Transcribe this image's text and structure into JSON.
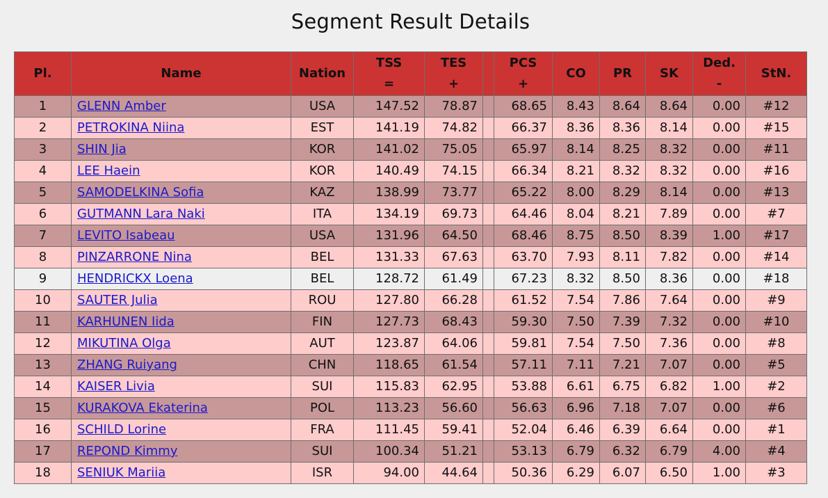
{
  "title": "Segment Result Details",
  "columns": {
    "pl": "Pl.",
    "name": "Name",
    "nation": "Nation",
    "tss": "TSS",
    "tss_sym": "=",
    "tes": "TES",
    "tes_sym": "+",
    "pcs": "PCS",
    "pcs_sym": "+",
    "co": "CO",
    "pr": "PR",
    "sk": "SK",
    "ded": "Ded.",
    "ded_sym": "-",
    "stn": "StN."
  },
  "rows": [
    {
      "pl": "1",
      "name": "GLENN Amber",
      "nation": "USA",
      "tss": "147.52",
      "tes": "78.87",
      "pcs": "68.65",
      "co": "8.43",
      "pr": "8.64",
      "sk": "8.64",
      "ded": "0.00",
      "stn": "#12"
    },
    {
      "pl": "2",
      "name": "PETROKINA Niina",
      "nation": "EST",
      "tss": "141.19",
      "tes": "74.82",
      "pcs": "66.37",
      "co": "8.36",
      "pr": "8.36",
      "sk": "8.14",
      "ded": "0.00",
      "stn": "#15"
    },
    {
      "pl": "3",
      "name": "SHIN Jia",
      "nation": "KOR",
      "tss": "141.02",
      "tes": "75.05",
      "pcs": "65.97",
      "co": "8.14",
      "pr": "8.25",
      "sk": "8.32",
      "ded": "0.00",
      "stn": "#11"
    },
    {
      "pl": "4",
      "name": "LEE Haein",
      "nation": "KOR",
      "tss": "140.49",
      "tes": "74.15",
      "pcs": "66.34",
      "co": "8.21",
      "pr": "8.32",
      "sk": "8.32",
      "ded": "0.00",
      "stn": "#16"
    },
    {
      "pl": "5",
      "name": "SAMODELKINA Sofia",
      "nation": "KAZ",
      "tss": "138.99",
      "tes": "73.77",
      "pcs": "65.22",
      "co": "8.00",
      "pr": "8.29",
      "sk": "8.14",
      "ded": "0.00",
      "stn": "#13"
    },
    {
      "pl": "6",
      "name": "GUTMANN Lara Naki",
      "nation": "ITA",
      "tss": "134.19",
      "tes": "69.73",
      "pcs": "64.46",
      "co": "8.04",
      "pr": "8.21",
      "sk": "7.89",
      "ded": "0.00",
      "stn": "#7"
    },
    {
      "pl": "7",
      "name": "LEVITO Isabeau",
      "nation": "USA",
      "tss": "131.96",
      "tes": "64.50",
      "pcs": "68.46",
      "co": "8.75",
      "pr": "8.50",
      "sk": "8.39",
      "ded": "1.00",
      "stn": "#17"
    },
    {
      "pl": "8",
      "name": "PINZARRONE Nina",
      "nation": "BEL",
      "tss": "131.33",
      "tes": "67.63",
      "pcs": "63.70",
      "co": "7.93",
      "pr": "8.11",
      "sk": "7.82",
      "ded": "0.00",
      "stn": "#14"
    },
    {
      "pl": "9",
      "name": "HENDRICKX Loena",
      "nation": "BEL",
      "tss": "128.72",
      "tes": "61.49",
      "pcs": "67.23",
      "co": "8.32",
      "pr": "8.50",
      "sk": "8.36",
      "ded": "0.00",
      "stn": "#18"
    },
    {
      "pl": "10",
      "name": "SAUTER Julia",
      "nation": "ROU",
      "tss": "127.80",
      "tes": "66.28",
      "pcs": "61.52",
      "co": "7.54",
      "pr": "7.86",
      "sk": "7.64",
      "ded": "0.00",
      "stn": "#9"
    },
    {
      "pl": "11",
      "name": "KARHUNEN Iida",
      "nation": "FIN",
      "tss": "127.73",
      "tes": "68.43",
      "pcs": "59.30",
      "co": "7.50",
      "pr": "7.39",
      "sk": "7.32",
      "ded": "0.00",
      "stn": "#10"
    },
    {
      "pl": "12",
      "name": "MIKUTINA Olga",
      "nation": "AUT",
      "tss": "123.87",
      "tes": "64.06",
      "pcs": "59.81",
      "co": "7.54",
      "pr": "7.50",
      "sk": "7.36",
      "ded": "0.00",
      "stn": "#8"
    },
    {
      "pl": "13",
      "name": "ZHANG Ruiyang",
      "nation": "CHN",
      "tss": "118.65",
      "tes": "61.54",
      "pcs": "57.11",
      "co": "7.11",
      "pr": "7.21",
      "sk": "7.07",
      "ded": "0.00",
      "stn": "#5"
    },
    {
      "pl": "14",
      "name": "KAISER Livia",
      "nation": "SUI",
      "tss": "115.83",
      "tes": "62.95",
      "pcs": "53.88",
      "co": "6.61",
      "pr": "6.75",
      "sk": "6.82",
      "ded": "1.00",
      "stn": "#2"
    },
    {
      "pl": "15",
      "name": "KURAKOVA Ekaterina",
      "nation": "POL",
      "tss": "113.23",
      "tes": "56.60",
      "pcs": "56.63",
      "co": "6.96",
      "pr": "7.18",
      "sk": "7.07",
      "ded": "0.00",
      "stn": "#6"
    },
    {
      "pl": "16",
      "name": "SCHILD Lorine",
      "nation": "FRA",
      "tss": "111.45",
      "tes": "59.41",
      "pcs": "52.04",
      "co": "6.46",
      "pr": "6.39",
      "sk": "6.64",
      "ded": "0.00",
      "stn": "#1"
    },
    {
      "pl": "17",
      "name": "REPOND Kimmy",
      "nation": "SUI",
      "tss": "100.34",
      "tes": "51.21",
      "pcs": "53.13",
      "co": "6.79",
      "pr": "6.32",
      "sk": "6.79",
      "ded": "4.00",
      "stn": "#4"
    },
    {
      "pl": "18",
      "name": "SENIUK Mariia",
      "nation": "ISR",
      "tss": "94.00",
      "tes": "44.64",
      "pcs": "50.36",
      "co": "6.29",
      "pr": "6.07",
      "sk": "6.50",
      "ded": "1.00",
      "stn": "#3"
    }
  ],
  "colors": {
    "header": "#cc3333",
    "row_dark": "#c89898",
    "row_light": "#ffcccc",
    "row_highlight": "#efefef",
    "link": "#1a1acc"
  }
}
